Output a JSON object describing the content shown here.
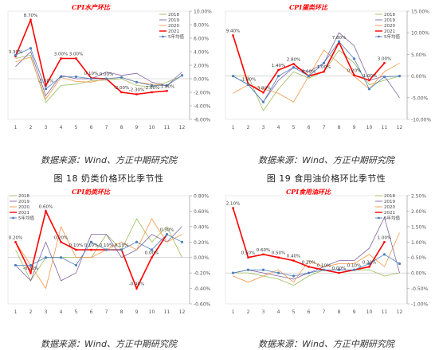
{
  "sources": [
    "数据来源：Wind、方正中期研究院",
    "数据来源：Wind、方正中期研究院",
    "数据来源：Wind、方正中期研究院",
    "数据来源：Wind、方正中期研究院"
  ],
  "captions": [
    "图 18  奶类价格环比季节性",
    "图 19  食用油价格环比季节性"
  ],
  "colors": {
    "s2018": "#9bbb59",
    "s2019": "#8064a2",
    "s2020": "#f79646",
    "s2021": "#ff0000",
    "avg": "#4f81bd"
  },
  "chart_data": [
    {
      "type": "line",
      "title": "CPI水产环比",
      "x": [
        1,
        2,
        3,
        4,
        5,
        6,
        7,
        8,
        9,
        10,
        11,
        12
      ],
      "ylim": [
        -0.06,
        0.1
      ],
      "yticks": [
        "10.00%",
        "8.00%",
        "6.00%",
        "4.00%",
        "2.00%",
        "0.00%",
        "-2.00%",
        "-4.00%",
        "-6.00%"
      ],
      "series": [
        {
          "name": "2018",
          "key": "s2018",
          "values": [
            0.03,
            0.035,
            -0.035,
            -0.01,
            -0.008,
            -0.003,
            -0.002,
            0.0,
            -0.01,
            -0.012,
            -0.005,
            0.004
          ]
        },
        {
          "name": "2019",
          "key": "s2019",
          "values": [
            0.018,
            0.04,
            -0.025,
            0.005,
            0.0,
            0.0,
            0.01,
            0.005,
            0.008,
            -0.005,
            -0.01,
            0.01
          ]
        },
        {
          "name": "2020",
          "key": "s2020",
          "values": [
            0.025,
            0.032,
            -0.03,
            0.002,
            -0.004,
            -0.005,
            0.0,
            0.002,
            -0.005,
            -0.008,
            -0.01,
            0.005
          ]
        },
        {
          "name": "2021",
          "key": "s2021",
          "values": [
            0.033,
            0.087,
            -0.01,
            0.03,
            0.03,
            0.001,
            0.0,
            -0.02,
            -0.023,
            -0.02,
            -0.018,
            null
          ]
        },
        {
          "name": "5年均值",
          "key": "avg",
          "values": [
            0.035,
            0.045,
            -0.015,
            0.003,
            0.003,
            0.0,
            0.0,
            0.002,
            -0.005,
            -0.01,
            -0.01,
            0.005
          ]
        }
      ],
      "labels": [
        {
          "x": 1,
          "y": 0.033,
          "t": "3.30%"
        },
        {
          "x": 2,
          "y": 0.087,
          "t": "8.70%"
        },
        {
          "x": 3,
          "y": -0.01,
          "t": "-1.00%"
        },
        {
          "x": 4,
          "y": 0.03,
          "t": "3.00%"
        },
        {
          "x": 5,
          "y": 0.03,
          "t": "3.00%"
        },
        {
          "x": 6,
          "y": 0.001,
          "t": "0.10%"
        },
        {
          "x": 7,
          "y": 0.0,
          "t": "0.00%"
        },
        {
          "x": 8,
          "y": -0.02,
          "t": "-2.00%"
        },
        {
          "x": 9,
          "y": -0.023,
          "t": "-2.30%"
        },
        {
          "x": 10,
          "y": -0.02,
          "t": "-2.00%"
        },
        {
          "x": 11,
          "y": -0.018,
          "t": "-1.80%"
        }
      ]
    },
    {
      "type": "line",
      "title": "CPI蛋类环比",
      "x": [
        1,
        2,
        3,
        4,
        5,
        6,
        7,
        8,
        9,
        10,
        11,
        12
      ],
      "ylim": [
        -0.1,
        0.15
      ],
      "yticks": [
        "15.00%",
        "10.00%",
        "5.00%",
        "0.00%",
        "-5.00%",
        "-10.00%"
      ],
      "series": [
        {
          "name": "2018",
          "key": "s2018",
          "values": [
            0.0,
            0.0,
            -0.08,
            -0.03,
            0.01,
            -0.005,
            0.01,
            0.06,
            0.03,
            -0.02,
            -0.01,
            0.0
          ]
        },
        {
          "name": "2019",
          "key": "s2019",
          "values": [
            0.0,
            -0.02,
            -0.06,
            -0.01,
            0.02,
            0.01,
            0.03,
            0.1,
            0.07,
            -0.01,
            0.0,
            -0.05
          ]
        },
        {
          "name": "2020",
          "key": "s2020",
          "values": [
            -0.04,
            -0.02,
            -0.03,
            -0.04,
            -0.06,
            0.0,
            0.06,
            0.03,
            0.0,
            -0.03,
            0.01,
            0.03
          ]
        },
        {
          "name": "2021",
          "key": "s2021",
          "values": [
            0.094,
            -0.018,
            -0.038,
            0.014,
            0.028,
            0.0,
            0.01,
            0.078,
            0.002,
            -0.01,
            0.03,
            null
          ]
        },
        {
          "name": "5年均值",
          "key": "avg",
          "values": [
            0.0,
            -0.02,
            -0.06,
            0.0,
            0.02,
            0.0,
            0.03,
            0.08,
            0.04,
            -0.03,
            -0.002,
            0.0
          ]
        }
      ],
      "labels": [
        {
          "x": 1,
          "y": 0.094,
          "t": "9.40%"
        },
        {
          "x": 2,
          "y": -0.018,
          "t": "-1.80%"
        },
        {
          "x": 3,
          "y": -0.038,
          "t": "-3.80%"
        },
        {
          "x": 4,
          "y": 0.014,
          "t": "1.40%"
        },
        {
          "x": 5,
          "y": 0.028,
          "t": "2.80%"
        },
        {
          "x": 6,
          "y": 0.0,
          "t": "0.00%"
        },
        {
          "x": 7,
          "y": 0.01,
          "t": "1.00%"
        },
        {
          "x": 8,
          "y": 0.078,
          "t": "7.80%"
        },
        {
          "x": 9,
          "y": 0.002,
          "t": "0.20%"
        },
        {
          "x": 10,
          "y": -0.01,
          "t": "-1.00%"
        },
        {
          "x": 11,
          "y": 0.03,
          "t": "3.00%"
        }
      ]
    },
    {
      "type": "line",
      "title": "CPI奶类环比",
      "x": [
        1,
        2,
        3,
        4,
        5,
        6,
        7,
        8,
        9,
        10,
        11,
        12
      ],
      "ylim": [
        -0.006,
        0.008
      ],
      "yticks": [
        "0.80%",
        "0.60%",
        "0.40%",
        "0.20%",
        "0.00%",
        "-0.20%",
        "-0.40%",
        "-0.60%"
      ],
      "series": [
        {
          "name": "2018",
          "key": "s2018",
          "values": [
            0.001,
            -0.003,
            0.0,
            0.0,
            0.0,
            0.0,
            0.003,
            0.001,
            0.005,
            0.002,
            0.004,
            0.0
          ]
        },
        {
          "name": "2019",
          "key": "s2019",
          "values": [
            -0.001,
            -0.003,
            0.002,
            -0.003,
            -0.002,
            0.003,
            0.003,
            0.0,
            0.001,
            0.003,
            0.002,
            0.004
          ]
        },
        {
          "name": "2020",
          "key": "s2020",
          "values": [
            0.002,
            -0.001,
            -0.004,
            0.004,
            0.0,
            0.0,
            0.001,
            0.002,
            0.001,
            0.005,
            0.002,
            0.003
          ]
        },
        {
          "name": "2021",
          "key": "s2021",
          "values": [
            0.002,
            -0.002,
            0.006,
            0.002,
            0.001,
            0.001,
            0.001,
            0.001,
            -0.004,
            0.0,
            0.003,
            null
          ]
        },
        {
          "name": "5年均值",
          "key": "avg",
          "values": [
            -0.001,
            -0.001,
            0.0,
            0.0,
            -0.001,
            0.002,
            0.001,
            0.001,
            0.002,
            0.001,
            0.003,
            0.002
          ]
        }
      ],
      "labels": [
        {
          "x": 1,
          "y": 0.002,
          "t": "0.20%"
        },
        {
          "x": 2,
          "y": -0.002,
          "t": "-0.20%"
        },
        {
          "x": 3,
          "y": 0.006,
          "t": "0.60%"
        },
        {
          "x": 4,
          "y": 0.002,
          "t": "0.20%"
        },
        {
          "x": 5,
          "y": 0.001,
          "t": "0.10%"
        },
        {
          "x": 6,
          "y": 0.001,
          "t": "0.10%"
        },
        {
          "x": 7,
          "y": 0.001,
          "t": "0.10%"
        },
        {
          "x": 8,
          "y": 0.001,
          "t": "0.10%"
        },
        {
          "x": 9,
          "y": -0.004,
          "t": "-0.40%"
        },
        {
          "x": 10,
          "y": 0.0,
          "t": "0.00%"
        },
        {
          "x": 11,
          "y": 0.003,
          "t": "0.30%"
        }
      ]
    },
    {
      "type": "line",
      "title": "CPI食用油环比",
      "x": [
        1,
        2,
        3,
        4,
        5,
        6,
        7,
        8,
        9,
        10,
        11,
        12
      ],
      "ylim": [
        -0.01,
        0.025
      ],
      "yticks": [
        "2.50%",
        "2.00%",
        "1.50%",
        "1.00%",
        "0.50%",
        "0.00%",
        "-0.50%",
        "-1.00%"
      ],
      "series": [
        {
          "name": "2018",
          "key": "s2018",
          "values": [
            0.0,
            0.0,
            -0.001,
            -0.002,
            -0.004,
            -0.001,
            0.001,
            0.0,
            0.001,
            0.001,
            -0.001,
            0.0
          ]
        },
        {
          "name": "2019",
          "key": "s2019",
          "values": [
            0.0,
            0.001,
            0.0,
            -0.001,
            -0.002,
            0.0,
            0.002,
            0.004,
            0.004,
            0.008,
            0.018,
            0.0
          ]
        },
        {
          "name": "2020",
          "key": "s2020",
          "values": [
            -0.001,
            -0.003,
            -0.001,
            0.001,
            -0.003,
            0.004,
            0.002,
            0.003,
            0.003,
            0.006,
            0.002,
            0.013
          ]
        },
        {
          "name": "2021",
          "key": "s2021",
          "values": [
            0.021,
            0.005,
            0.006,
            0.005,
            0.004,
            0.002,
            0.001,
            0.0,
            0.001,
            0.002,
            0.01,
            null
          ]
        },
        {
          "name": "5年均值",
          "key": "avg",
          "values": [
            0.0,
            0.001,
            0.001,
            0.0,
            -0.001,
            0.0,
            0.001,
            0.001,
            0.001,
            0.003,
            0.006,
            0.003
          ]
        }
      ],
      "labels": [
        {
          "x": 1,
          "y": 0.021,
          "t": "2.10%"
        },
        {
          "x": 2,
          "y": 0.005,
          "t": "0.50%"
        },
        {
          "x": 3,
          "y": 0.006,
          "t": "0.60%"
        },
        {
          "x": 4,
          "y": 0.005,
          "t": "0.50%"
        },
        {
          "x": 5,
          "y": 0.004,
          "t": "0.40%"
        },
        {
          "x": 6,
          "y": 0.002,
          "t": "0.20%"
        },
        {
          "x": 7,
          "y": 0.001,
          "t": "0.10%"
        },
        {
          "x": 8,
          "y": 0.0,
          "t": "0.00%"
        },
        {
          "x": 9,
          "y": 0.001,
          "t": "0.10%"
        },
        {
          "x": 10,
          "y": 0.002,
          "t": "0.20%"
        },
        {
          "x": 11,
          "y": 0.01,
          "t": "1.00%"
        }
      ]
    }
  ]
}
